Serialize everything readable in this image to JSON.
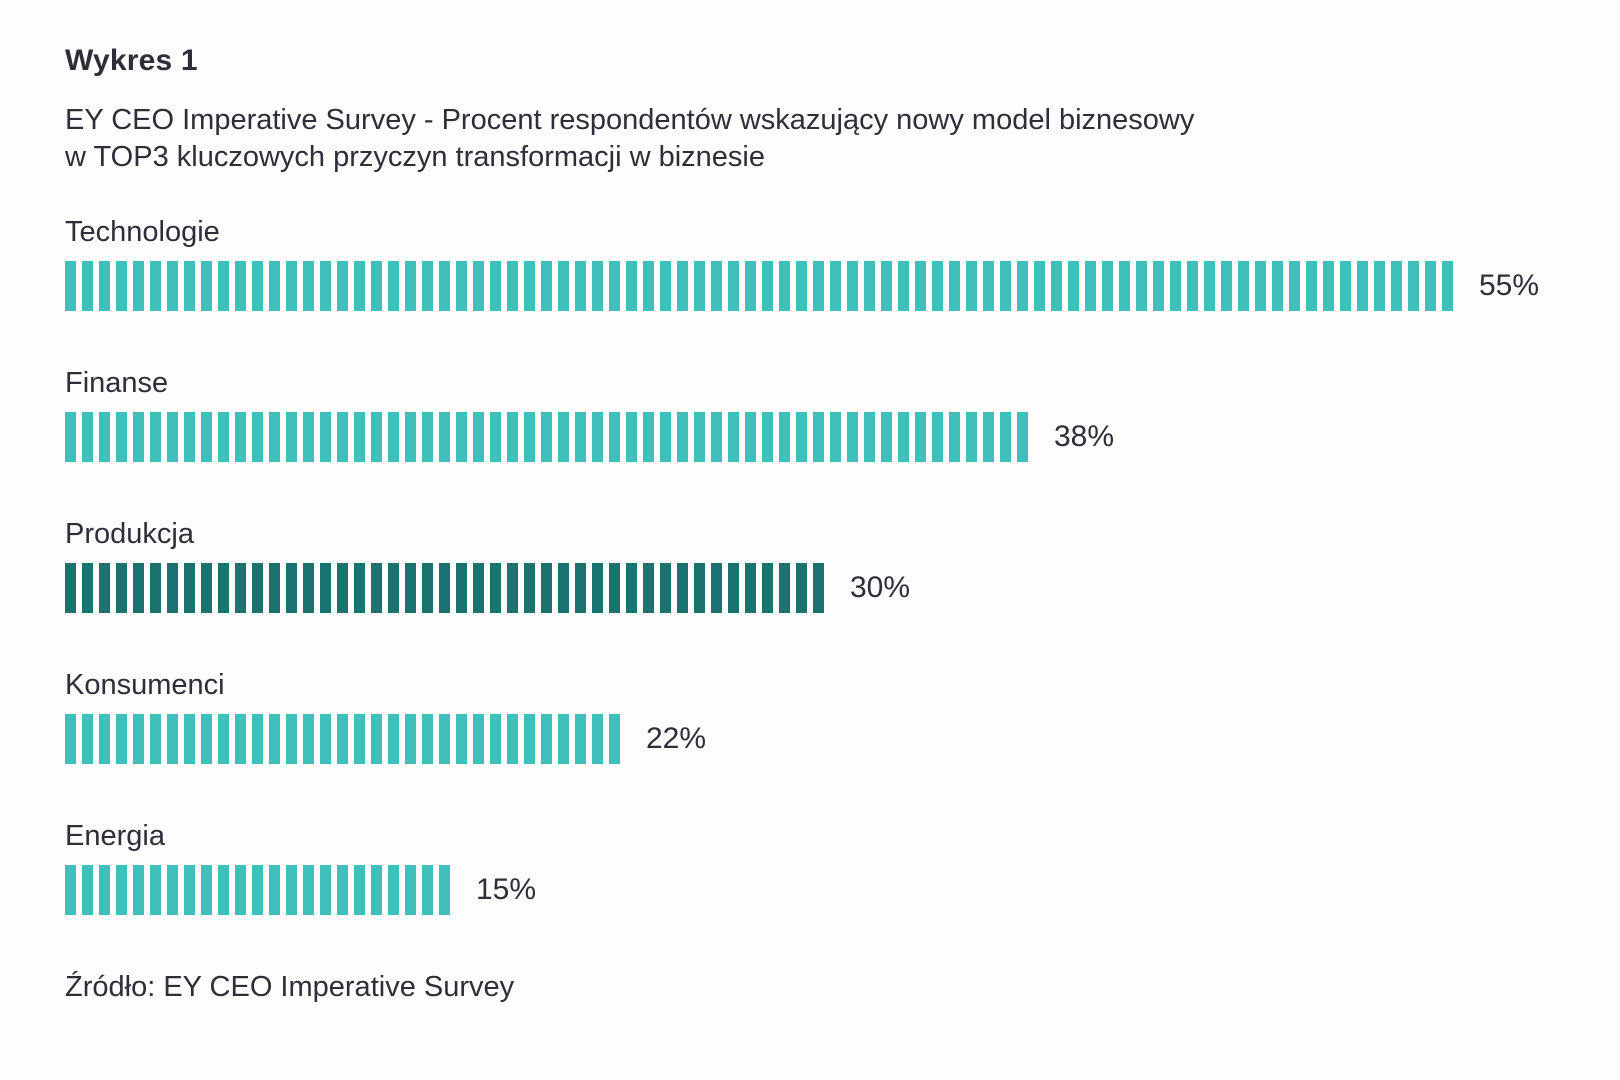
{
  "chart": {
    "label": "Wykres 1",
    "title_line1": "EY CEO Imperative Survey - Procent respondentów wskazujący nowy model biznesowy",
    "title_line2": "w TOP3 kluczowych przyczyn transformacji w biznesie",
    "source": "Źródło: EY CEO Imperative Survey"
  },
  "chart_data": {
    "type": "bar",
    "orientation": "horizontal",
    "style": "segmented-striped-bars",
    "title": "EY CEO Imperative Survey - Procent respondentów wskazujący nowy model biznesowy w TOP3 kluczowych przyczyn transformacji w biznesie",
    "categories": [
      "Technologie",
      "Finanse",
      "Produkcja",
      "Konsumenci",
      "Energia"
    ],
    "values": [
      55,
      38,
      30,
      22,
      15
    ],
    "value_labels": [
      "55%",
      "38%",
      "30%",
      "22%",
      "15%"
    ],
    "unit": "%",
    "bar_colors": [
      "#3fc0ba",
      "#3fc0ba",
      "#1b7370",
      "#3fc0ba",
      "#3fc0ba"
    ],
    "accent_color": "#3fc0ba",
    "highlight_color": "#1b7370",
    "text_color": "#2e2e38",
    "xlim": [
      0,
      60
    ],
    "grid": false,
    "legend": false,
    "axes_visible": false,
    "source": "Źródło: EY CEO Imperative Survey"
  }
}
